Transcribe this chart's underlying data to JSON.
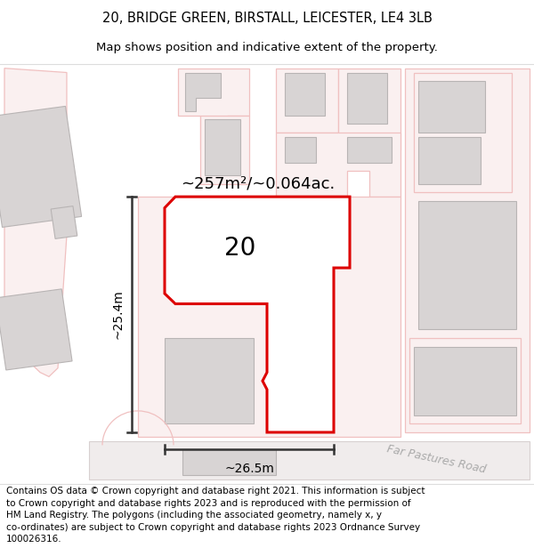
{
  "title_line1": "20, BRIDGE GREEN, BIRSTALL, LEICESTER, LE4 3LB",
  "title_line2": "Map shows position and indicative extent of the property.",
  "footer_text": "Contains OS data © Crown copyright and database right 2021. This information is subject\nto Crown copyright and database rights 2023 and is reproduced with the permission of\nHM Land Registry. The polygons (including the associated geometry, namely x, y\nco-ordinates) are subject to Crown copyright and database rights 2023 Ordnance Survey\n100026316.",
  "area_label": "~257m²/~0.064ac.",
  "number_label": "20",
  "width_label": "~26.5m",
  "height_label": "~25.4m",
  "road_label": "Far Pastures Road",
  "map_bg": "#faf8f8",
  "building_fill": "#d8d4d4",
  "building_ec": "#b8b4b4",
  "boundary_fill": "#faf0f0",
  "boundary_ec": "#f0c0c0",
  "highlight_ec": "#dd0000",
  "highlight_fill": "#ffffff",
  "dim_color": "#333333",
  "road_color": "#aaaaaa",
  "title_fontsize": 10.5,
  "subtitle_fontsize": 9.5,
  "footer_fontsize": 7.5,
  "area_fontsize": 13,
  "number_fontsize": 20,
  "dim_fontsize": 10,
  "road_fontsize": 9
}
